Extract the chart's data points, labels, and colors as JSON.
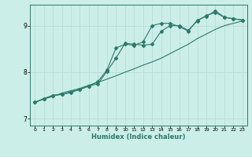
{
  "xlabel": "Humidex (Indice chaleur)",
  "background_color": "#cceee8",
  "grid_color": "#b8ddd8",
  "line_color": "#2a7a6a",
  "xlim": [
    -0.5,
    23.5
  ],
  "ylim": [
    6.85,
    9.45
  ],
  "yticks": [
    7,
    8,
    9
  ],
  "xticks": [
    0,
    1,
    2,
    3,
    4,
    5,
    6,
    7,
    8,
    9,
    10,
    11,
    12,
    13,
    14,
    15,
    16,
    17,
    18,
    19,
    20,
    21,
    22,
    23
  ],
  "line1_x": [
    0,
    1,
    2,
    3,
    4,
    5,
    6,
    7,
    8,
    9,
    10,
    11,
    12,
    13,
    14,
    15,
    16,
    17,
    18,
    19,
    20,
    21,
    22,
    23
  ],
  "line1_y": [
    7.35,
    7.42,
    7.48,
    7.55,
    7.6,
    7.65,
    7.72,
    7.78,
    7.85,
    7.92,
    8.0,
    8.07,
    8.15,
    8.22,
    8.3,
    8.4,
    8.5,
    8.6,
    8.72,
    8.82,
    8.92,
    9.0,
    9.05,
    9.1
  ],
  "line2_x": [
    0,
    1,
    2,
    3,
    4,
    5,
    6,
    7,
    8,
    9,
    10,
    11,
    12,
    13,
    14,
    15,
    16,
    17,
    18,
    19,
    20,
    21,
    22,
    23
  ],
  "line2_y": [
    7.35,
    7.43,
    7.5,
    7.52,
    7.58,
    7.63,
    7.7,
    7.75,
    8.02,
    8.3,
    8.62,
    8.6,
    8.58,
    8.6,
    8.88,
    9.0,
    9.0,
    8.9,
    9.1,
    9.22,
    9.28,
    9.18,
    9.15,
    9.12
  ],
  "line3_x": [
    0,
    1,
    2,
    3,
    4,
    5,
    6,
    7,
    8,
    9,
    10,
    11,
    12,
    13,
    14,
    15,
    16,
    17,
    18,
    19,
    20,
    21,
    22,
    23
  ],
  "line3_y": [
    7.35,
    7.43,
    7.5,
    7.52,
    7.56,
    7.63,
    7.7,
    7.8,
    8.05,
    8.52,
    8.6,
    8.58,
    8.65,
    9.0,
    9.05,
    9.05,
    8.98,
    8.88,
    9.12,
    9.2,
    9.32,
    9.18,
    9.15,
    9.12
  ]
}
